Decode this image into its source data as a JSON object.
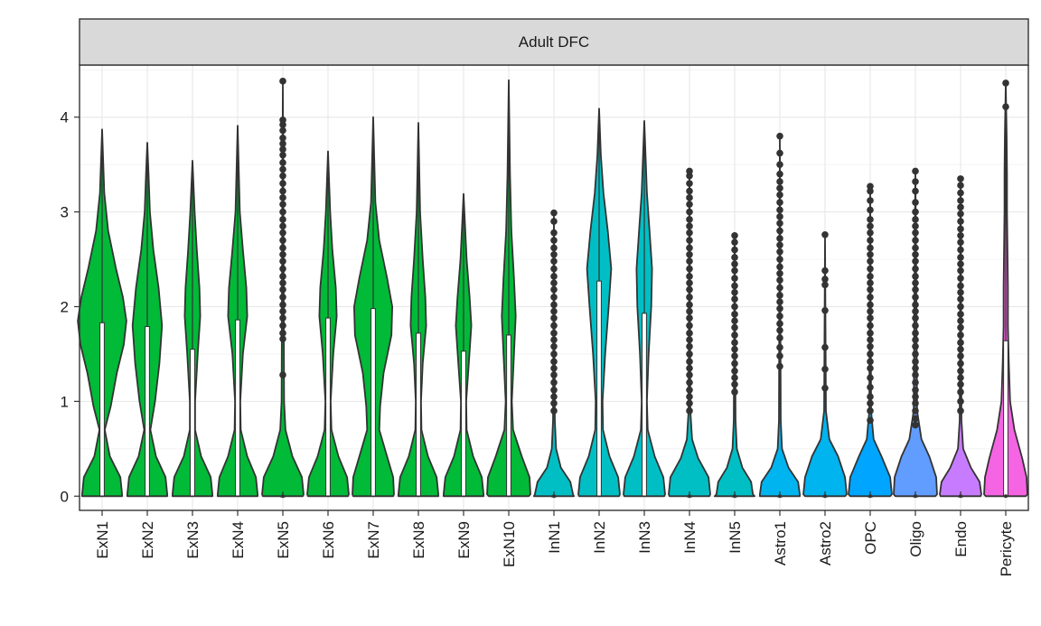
{
  "chart_data": {
    "type": "violin",
    "facet_title": "Adult DFC",
    "title": "",
    "xlabel": "",
    "ylabel": "",
    "ylim": [
      -0.15,
      4.55
    ],
    "yticks": [
      0,
      1,
      2,
      3,
      4
    ],
    "grid": true,
    "legend": "none",
    "categories": [
      "ExN1",
      "ExN2",
      "ExN3",
      "ExN4",
      "ExN5",
      "ExN6",
      "ExN7",
      "ExN8",
      "ExN9",
      "ExN10",
      "InN1",
      "InN2",
      "InN3",
      "InN4",
      "InN5",
      "Astro1",
      "Astro2",
      "OPC",
      "Oligo",
      "Endo",
      "Pericyte"
    ],
    "colors": [
      "#00BA38",
      "#00BA38",
      "#00BA38",
      "#00BA38",
      "#00BA38",
      "#00BA38",
      "#00BA38",
      "#00BA38",
      "#00BA38",
      "#00BA38",
      "#00BFC4",
      "#00BFC4",
      "#00BFC4",
      "#00BFC4",
      "#00BFC4",
      "#00B4EF",
      "#00B4EF",
      "#00A5FF",
      "#619CFF",
      "#C77CFF",
      "#F564E3"
    ],
    "violins": [
      {
        "max": 3.87,
        "hi": [
          [
            0.02,
            0.46
          ],
          [
            0.2,
            0.42
          ],
          [
            0.42,
            0.18
          ],
          [
            0.7,
            0.06
          ],
          [
            0.95,
            0.2
          ],
          [
            1.3,
            0.34
          ],
          [
            1.6,
            0.5
          ],
          [
            1.85,
            0.56
          ],
          [
            2.1,
            0.48
          ],
          [
            2.4,
            0.32
          ],
          [
            2.8,
            0.14
          ],
          [
            3.2,
            0.05
          ]
        ],
        "median": 0,
        "q3": 1.83,
        "whisker": 3.87,
        "outliers": []
      },
      {
        "max": 3.73,
        "hi": [
          [
            0.02,
            0.46
          ],
          [
            0.2,
            0.42
          ],
          [
            0.42,
            0.2
          ],
          [
            0.7,
            0.07
          ],
          [
            1.0,
            0.18
          ],
          [
            1.4,
            0.28
          ],
          [
            1.8,
            0.34
          ],
          [
            2.2,
            0.26
          ],
          [
            2.6,
            0.14
          ],
          [
            3.0,
            0.06
          ],
          [
            3.4,
            0.03
          ]
        ],
        "median": 0,
        "q3": 1.79,
        "whisker": 3.73,
        "outliers": []
      },
      {
        "max": 3.54,
        "hi": [
          [
            0.02,
            0.46
          ],
          [
            0.2,
            0.42
          ],
          [
            0.42,
            0.2
          ],
          [
            0.7,
            0.06
          ],
          [
            1.0,
            0.06
          ],
          [
            1.5,
            0.12
          ],
          [
            1.9,
            0.18
          ],
          [
            2.2,
            0.16
          ],
          [
            2.6,
            0.1
          ],
          [
            3.0,
            0.05
          ]
        ],
        "median": 0,
        "q3": 1.55,
        "whisker": 3.54,
        "outliers": []
      },
      {
        "max": 3.91,
        "hi": [
          [
            0.02,
            0.46
          ],
          [
            0.2,
            0.42
          ],
          [
            0.42,
            0.22
          ],
          [
            0.7,
            0.07
          ],
          [
            1.0,
            0.06
          ],
          [
            1.5,
            0.12
          ],
          [
            1.9,
            0.22
          ],
          [
            2.2,
            0.2
          ],
          [
            2.6,
            0.12
          ],
          [
            3.0,
            0.05
          ]
        ],
        "median": 0,
        "q3": 1.86,
        "whisker": 3.91,
        "outliers": []
      },
      {
        "max": 4.38,
        "hi": [
          [
            0.02,
            0.48
          ],
          [
            0.2,
            0.44
          ],
          [
            0.42,
            0.22
          ],
          [
            0.7,
            0.06
          ],
          [
            1.0,
            0.03
          ]
        ],
        "median": 0,
        "q3": 0,
        "whisker": 0.05,
        "outliers": [
          4.38,
          3.97,
          3.92,
          3.86,
          3.78,
          3.72,
          3.66,
          3.6,
          3.52,
          3.45,
          3.38,
          3.3,
          3.22,
          3.15,
          3.08,
          3.0,
          2.92,
          2.85,
          2.78,
          2.7,
          2.62,
          2.55,
          2.48,
          2.4,
          2.32,
          2.25,
          2.18,
          2.1,
          2.02,
          1.95,
          1.88,
          1.8,
          1.72,
          1.66,
          1.28
        ]
      },
      {
        "max": 3.64,
        "hi": [
          [
            0.02,
            0.48
          ],
          [
            0.2,
            0.44
          ],
          [
            0.42,
            0.24
          ],
          [
            0.7,
            0.08
          ],
          [
            1.0,
            0.06
          ],
          [
            1.5,
            0.12
          ],
          [
            1.9,
            0.2
          ],
          [
            2.2,
            0.18
          ],
          [
            2.6,
            0.1
          ],
          [
            3.0,
            0.05
          ]
        ],
        "median": 0,
        "q3": 1.88,
        "whisker": 3.64,
        "outliers": []
      },
      {
        "max": 4.0,
        "hi": [
          [
            0.02,
            0.48
          ],
          [
            0.2,
            0.46
          ],
          [
            0.45,
            0.3
          ],
          [
            0.7,
            0.14
          ],
          [
            0.95,
            0.16
          ],
          [
            1.3,
            0.24
          ],
          [
            1.7,
            0.42
          ],
          [
            2.0,
            0.44
          ],
          [
            2.3,
            0.32
          ],
          [
            2.7,
            0.14
          ],
          [
            3.1,
            0.05
          ]
        ],
        "median": 0,
        "q3": 1.98,
        "whisker": 4.0,
        "outliers": []
      },
      {
        "max": 3.94,
        "hi": [
          [
            0.02,
            0.46
          ],
          [
            0.2,
            0.42
          ],
          [
            0.42,
            0.22
          ],
          [
            0.7,
            0.07
          ],
          [
            1.0,
            0.06
          ],
          [
            1.4,
            0.1
          ],
          [
            1.8,
            0.18
          ],
          [
            2.1,
            0.16
          ],
          [
            2.5,
            0.1
          ],
          [
            3.0,
            0.04
          ]
        ],
        "median": 0,
        "q3": 1.72,
        "whisker": 3.94,
        "outliers": []
      },
      {
        "max": 3.19,
        "hi": [
          [
            0.02,
            0.46
          ],
          [
            0.2,
            0.42
          ],
          [
            0.42,
            0.22
          ],
          [
            0.7,
            0.07
          ],
          [
            1.0,
            0.06
          ],
          [
            1.4,
            0.12
          ],
          [
            1.8,
            0.18
          ],
          [
            2.1,
            0.14
          ],
          [
            2.5,
            0.07
          ],
          [
            2.9,
            0.03
          ]
        ],
        "median": 0,
        "q3": 1.53,
        "whisker": 3.19,
        "outliers": []
      },
      {
        "max": 4.39,
        "hi": [
          [
            0.02,
            0.5
          ],
          [
            0.2,
            0.48
          ],
          [
            0.42,
            0.3
          ],
          [
            0.7,
            0.1
          ],
          [
            1.0,
            0.07
          ],
          [
            1.5,
            0.12
          ],
          [
            1.9,
            0.16
          ],
          [
            2.3,
            0.12
          ],
          [
            2.8,
            0.06
          ],
          [
            3.4,
            0.03
          ]
        ],
        "median": 0,
        "q3": 1.7,
        "whisker": 4.39,
        "outliers": []
      },
      {
        "max": 2.99,
        "hi": [
          [
            0.02,
            0.44
          ],
          [
            0.15,
            0.38
          ],
          [
            0.3,
            0.16
          ],
          [
            0.5,
            0.05
          ],
          [
            0.8,
            0.02
          ]
        ],
        "median": 0,
        "q3": 0,
        "whisker": 0.05,
        "outliers": [
          2.99,
          2.9,
          2.78,
          2.7,
          2.62,
          2.55,
          2.48,
          2.4,
          2.32,
          2.25,
          2.18,
          2.1,
          2.02,
          1.95,
          1.88,
          1.8,
          1.72,
          1.65,
          1.58,
          1.5,
          1.42,
          1.35,
          1.28,
          1.2,
          1.12,
          1.05,
          0.98,
          0.9
        ]
      },
      {
        "max": 4.09,
        "hi": [
          [
            0.02,
            0.48
          ],
          [
            0.2,
            0.44
          ],
          [
            0.42,
            0.24
          ],
          [
            0.7,
            0.09
          ],
          [
            1.0,
            0.08
          ],
          [
            1.5,
            0.14
          ],
          [
            2.0,
            0.22
          ],
          [
            2.4,
            0.28
          ],
          [
            2.8,
            0.2
          ],
          [
            3.2,
            0.1
          ],
          [
            3.6,
            0.04
          ]
        ],
        "median": 0,
        "q3": 2.27,
        "whisker": 4.09,
        "outliers": []
      },
      {
        "max": 3.96,
        "hi": [
          [
            0.02,
            0.48
          ],
          [
            0.2,
            0.44
          ],
          [
            0.42,
            0.24
          ],
          [
            0.7,
            0.08
          ],
          [
            1.0,
            0.06
          ],
          [
            1.5,
            0.1
          ],
          [
            2.0,
            0.16
          ],
          [
            2.4,
            0.18
          ],
          [
            2.8,
            0.12
          ],
          [
            3.2,
            0.06
          ]
        ],
        "median": 0,
        "q3": 1.93,
        "whisker": 3.96,
        "outliers": []
      },
      {
        "max": 3.43,
        "hi": [
          [
            0.02,
            0.48
          ],
          [
            0.2,
            0.44
          ],
          [
            0.4,
            0.2
          ],
          [
            0.6,
            0.06
          ],
          [
            0.9,
            0.02
          ]
        ],
        "median": 0,
        "q3": 0,
        "whisker": 0.05,
        "outliers": [
          3.43,
          3.38,
          3.3,
          3.22,
          3.15,
          3.08,
          3.0,
          2.92,
          2.85,
          2.78,
          2.7,
          2.62,
          2.55,
          2.48,
          2.4,
          2.32,
          2.25,
          2.18,
          2.1,
          2.02,
          1.95,
          1.88,
          1.8,
          1.72,
          1.65,
          1.58,
          1.5,
          1.42,
          1.35,
          1.28,
          1.2,
          1.12,
          1.05,
          0.98,
          0.9
        ]
      },
      {
        "max": 2.75,
        "hi": [
          [
            0.02,
            0.42
          ],
          [
            0.15,
            0.38
          ],
          [
            0.3,
            0.18
          ],
          [
            0.5,
            0.05
          ],
          [
            0.8,
            0.02
          ]
        ],
        "median": 0,
        "q3": 0,
        "whisker": 0.05,
        "outliers": [
          2.75,
          2.68,
          2.6,
          2.52,
          2.45,
          2.38,
          2.3,
          2.22,
          2.15,
          2.08,
          2.0,
          1.92,
          1.85,
          1.78,
          1.7,
          1.62,
          1.55,
          1.48,
          1.4,
          1.32,
          1.25,
          1.18,
          1.1
        ]
      },
      {
        "max": 3.8,
        "hi": [
          [
            0.02,
            0.46
          ],
          [
            0.15,
            0.42
          ],
          [
            0.3,
            0.2
          ],
          [
            0.5,
            0.05
          ],
          [
            0.8,
            0.02
          ]
        ],
        "median": 0,
        "q3": 0,
        "whisker": 0.05,
        "outliers": [
          3.8,
          3.62,
          3.5,
          3.4,
          3.32,
          3.25,
          3.18,
          3.1,
          3.02,
          2.95,
          2.88,
          2.8,
          2.72,
          2.65,
          2.58,
          2.5,
          2.42,
          2.35,
          2.28,
          2.2,
          2.12,
          2.05,
          1.98,
          1.9,
          1.82,
          1.75,
          1.67,
          1.57,
          1.48,
          1.37
        ]
      },
      {
        "max": 2.76,
        "hi": [
          [
            0.02,
            0.5
          ],
          [
            0.2,
            0.46
          ],
          [
            0.42,
            0.3
          ],
          [
            0.6,
            0.1
          ],
          [
            0.9,
            0.02
          ]
        ],
        "median": 0,
        "q3": 0,
        "whisker": 0.05,
        "outliers": [
          2.76,
          2.38,
          2.29,
          2.23,
          1.96,
          1.57,
          1.34,
          1.14
        ]
      },
      {
        "max": 3.27,
        "hi": [
          [
            0.02,
            0.5
          ],
          [
            0.2,
            0.46
          ],
          [
            0.42,
            0.26
          ],
          [
            0.6,
            0.08
          ],
          [
            0.9,
            0.02
          ]
        ],
        "median": 0,
        "q3": 0,
        "whisker": 0.05,
        "outliers": [
          3.27,
          3.22,
          3.12,
          3.02,
          2.92,
          2.85,
          2.78,
          2.7,
          2.62,
          2.55,
          2.48,
          2.4,
          2.32,
          2.25,
          2.18,
          2.1,
          2.02,
          1.95,
          1.88,
          1.8,
          1.72,
          1.65,
          1.58,
          1.5,
          1.42,
          1.35,
          1.25,
          1.15,
          1.05,
          0.98,
          0.9,
          0.8
        ]
      },
      {
        "max": 3.43,
        "hi": [
          [
            0.02,
            0.5
          ],
          [
            0.2,
            0.48
          ],
          [
            0.42,
            0.32
          ],
          [
            0.6,
            0.14
          ],
          [
            0.9,
            0.04
          ]
        ],
        "median": 0,
        "q3": 0,
        "whisker": 0.05,
        "outliers": [
          3.43,
          3.32,
          3.22,
          3.1,
          3.0,
          2.92,
          2.85,
          2.78,
          2.7,
          2.62,
          2.55,
          2.48,
          2.4,
          2.32,
          2.25,
          2.18,
          2.1,
          2.02,
          1.95,
          1.88,
          1.8,
          1.72,
          1.65,
          1.58,
          1.5,
          1.42,
          1.35,
          1.28,
          1.2,
          1.12,
          1.05,
          0.98,
          0.9,
          0.82,
          0.75
        ]
      },
      {
        "max": 3.35,
        "hi": [
          [
            0.02,
            0.48
          ],
          [
            0.15,
            0.44
          ],
          [
            0.3,
            0.24
          ],
          [
            0.5,
            0.06
          ],
          [
            0.8,
            0.02
          ]
        ],
        "median": 0,
        "q3": 0,
        "whisker": 0.05,
        "outliers": [
          3.35,
          3.28,
          3.2,
          3.12,
          3.05,
          2.98,
          2.9,
          2.82,
          2.75,
          2.68,
          2.6,
          2.52,
          2.45,
          2.38,
          2.3,
          2.22,
          2.15,
          2.08,
          2.0,
          1.92,
          1.85,
          1.78,
          1.7,
          1.62,
          1.55,
          1.48,
          1.4,
          1.32,
          1.25,
          1.18,
          1.1,
          1.0,
          0.9
        ]
      },
      {
        "max": 4.36,
        "hi": [
          [
            0.02,
            0.5
          ],
          [
            0.2,
            0.48
          ],
          [
            0.4,
            0.38
          ],
          [
            0.7,
            0.2
          ],
          [
            1.0,
            0.1
          ],
          [
            1.4,
            0.07
          ],
          [
            1.8,
            0.05
          ],
          [
            2.2,
            0.05
          ],
          [
            2.6,
            0.04
          ],
          [
            3.0,
            0.03
          ],
          [
            3.4,
            0.03
          ],
          [
            3.8,
            0.02
          ]
        ],
        "median": 0,
        "q3": 1.64,
        "whisker": 4.11,
        "outliers": [
          4.36,
          4.11
        ]
      }
    ]
  }
}
